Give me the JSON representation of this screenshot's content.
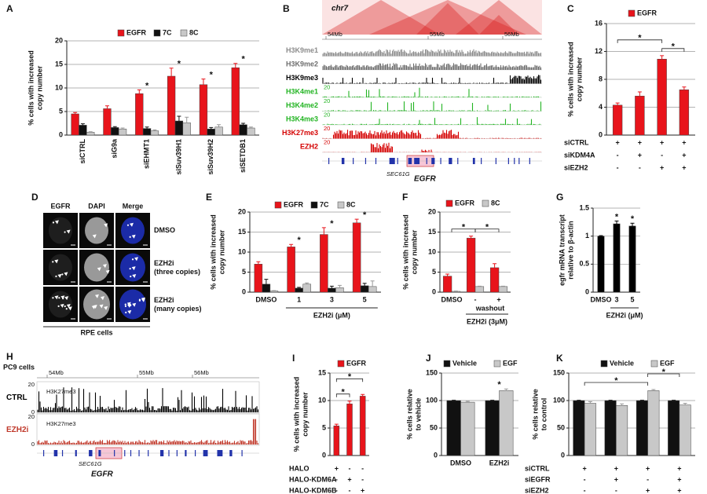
{
  "chart_data": [
    {
      "type": "bar",
      "panel": "A",
      "ylabel": [
        "% cells with increased",
        "copy number"
      ],
      "categories": [
        "siCTRL",
        "siG9a",
        "siEHMT1",
        "siSuv39H1",
        "siSuv39H2",
        "siSETDB1"
      ],
      "series": [
        {
          "name": "EGFR",
          "color": "#e8141b",
          "values": [
            4.5,
            5.6,
            8.8,
            12.5,
            10.7,
            14.3
          ],
          "errors": [
            0.3,
            0.6,
            0.8,
            1.7,
            1.2,
            0.9
          ]
        },
        {
          "name": "7C",
          "color": "#111111",
          "values": [
            2.1,
            1.6,
            1.4,
            3.0,
            1.3,
            2.2
          ],
          "errors": [
            0.3,
            0.2,
            0.3,
            1.0,
            0.3,
            0.3
          ]
        },
        {
          "name": "8C",
          "color": "#c8c8c8",
          "values": [
            0.6,
            1.3,
            0.9,
            2.6,
            1.7,
            1.5
          ],
          "errors": [
            0.1,
            0.2,
            0.2,
            1.2,
            0.5,
            0.2
          ]
        }
      ],
      "ylim": [
        0,
        20
      ],
      "yticks": [
        0,
        5,
        10,
        15,
        20
      ],
      "grid": true,
      "annotations": [
        "*",
        "*",
        "*",
        "*"
      ]
    },
    {
      "type": "bar",
      "panel": "C",
      "ylabel": [
        "% cells with increased",
        "copy number"
      ],
      "categories": [
        null,
        null,
        null,
        null
      ],
      "series": [
        {
          "name": "EGFR",
          "color": "#e8141b",
          "values": [
            4.3,
            5.6,
            10.9,
            6.5
          ],
          "errors": [
            0.3,
            0.6,
            0.5,
            0.4
          ]
        }
      ],
      "conditions": [
        {
          "name": "siCTRL",
          "marks": [
            "+",
            "+",
            "+",
            "+"
          ]
        },
        {
          "name": "siKDM4A",
          "marks": [
            "-",
            "+",
            "-",
            "+"
          ]
        },
        {
          "name": "siEZH2",
          "marks": [
            "-",
            "-",
            "+",
            "+"
          ]
        }
      ],
      "ylim": [
        0,
        16
      ],
      "yticks": [
        0,
        4,
        8,
        12,
        16
      ],
      "grid": true,
      "annotations": [
        "*",
        "*"
      ]
    },
    {
      "type": "bar",
      "panel": "E",
      "ylabel": [
        "% cells with increased",
        "copy number"
      ],
      "categories": [
        "DMSO",
        "1",
        "3",
        "5"
      ],
      "xlabel": "EZH2i (μM)",
      "series": [
        {
          "name": "EGFR",
          "color": "#e8141b",
          "values": [
            7.0,
            11.3,
            14.4,
            17.3
          ],
          "errors": [
            0.6,
            0.6,
            1.7,
            0.9
          ]
        },
        {
          "name": "7C",
          "color": "#111111",
          "values": [
            2.0,
            1.0,
            1.0,
            1.6
          ],
          "errors": [
            1.2,
            0.2,
            0.5,
            0.6
          ]
        },
        {
          "name": "8C",
          "color": "#c8c8c8",
          "values": [
            0.3,
            2.0,
            1.1,
            1.4
          ],
          "errors": [
            0.1,
            0.3,
            0.6,
            1.4
          ]
        }
      ],
      "ylim": [
        0,
        20
      ],
      "yticks": [
        0,
        5,
        10,
        15,
        20
      ],
      "grid": true,
      "annotations": [
        "*",
        "*",
        "*"
      ]
    },
    {
      "type": "bar",
      "panel": "F",
      "ylabel": [
        "% cells with increased",
        "copy number"
      ],
      "categories": [
        "DMSO",
        "-",
        "+"
      ],
      "sublabel": "washout",
      "xlabel": "EZH2i (3μM)",
      "series": [
        {
          "name": "EGFR",
          "color": "#e8141b",
          "values": [
            4.0,
            13.5,
            6.1
          ],
          "errors": [
            0.5,
            0.5,
            1.0
          ]
        },
        {
          "name": "8C",
          "color": "#c8c8c8",
          "values": [
            0.2,
            1.4,
            1.4
          ],
          "errors": [
            0.1,
            0.1,
            0.1
          ]
        }
      ],
      "ylim": [
        0,
        20
      ],
      "yticks": [
        0,
        5,
        10,
        15,
        20
      ],
      "grid": true,
      "annotations": [
        "*",
        "*"
      ]
    },
    {
      "type": "bar",
      "panel": "G",
      "ylabel": [
        "egfr mRNA transcript",
        "relative to β-actin"
      ],
      "categories": [
        "DMSO",
        "3",
        "5"
      ],
      "xlabel": "EZH2i (μM)",
      "series": [
        {
          "color": "#000000",
          "values": [
            1,
            1.22,
            1.18
          ],
          "errors": [
            0.01,
            0.05,
            0.05
          ]
        }
      ],
      "ylim": [
        0,
        1.5
      ],
      "yticks": [
        0,
        0.5,
        1,
        1.5
      ],
      "grid": true,
      "annotations": [
        "*",
        "*"
      ]
    },
    {
      "type": "bar",
      "panel": "I",
      "ylabel": [
        "% cells with increased",
        "copy number"
      ],
      "categories": [
        null,
        null,
        null
      ],
      "series": [
        {
          "name": "EGFR",
          "color": "#e8141b",
          "values": [
            5.4,
            9.4,
            10.8
          ],
          "errors": [
            0.3,
            0.5,
            0.3
          ]
        }
      ],
      "conditions": [
        {
          "name": "HALO",
          "marks": [
            "+",
            "-",
            "-"
          ]
        },
        {
          "name": "HALO-KDM6A",
          "marks": [
            "-",
            "+",
            "-"
          ]
        },
        {
          "name": "HALO-KDM6B",
          "marks": [
            "-",
            "-",
            "+"
          ]
        }
      ],
      "ylim": [
        0,
        15
      ],
      "yticks": [
        0,
        5,
        10,
        15
      ],
      "grid": true,
      "annotations": [
        "*",
        "*"
      ]
    },
    {
      "type": "bar",
      "panel": "J",
      "ylabel": [
        "% cells relative",
        "to vehicle"
      ],
      "categories": [
        "DMSO",
        "EZH2i"
      ],
      "series": [
        {
          "name": "Vehicle",
          "color": "#111111",
          "values": [
            100,
            100
          ],
          "errors": [
            0.5,
            0.5
          ]
        },
        {
          "name": "EGF",
          "color": "#c8c8c8",
          "values": [
            97,
            118
          ],
          "errors": [
            1.5,
            3
          ]
        }
      ],
      "ylim": [
        0,
        150
      ],
      "yticks": [
        0,
        50,
        100,
        150
      ],
      "grid": true,
      "annotations": [
        "*"
      ]
    },
    {
      "type": "bar",
      "panel": "K",
      "ylabel": [
        "% cells relative",
        "to control"
      ],
      "categories": [
        null,
        null,
        null,
        null
      ],
      "series": [
        {
          "name": "Vehicle",
          "color": "#111111",
          "values": [
            100,
            100,
            100,
            100
          ],
          "errors": [
            0.5,
            0.5,
            0.5,
            0.5
          ]
        },
        {
          "name": "EGF",
          "color": "#c8c8c8",
          "values": [
            95,
            91,
            118,
            92
          ],
          "errors": [
            3,
            3,
            2,
            3
          ]
        }
      ],
      "conditions": [
        {
          "name": "siCTRL",
          "marks": [
            "+",
            "+",
            "+",
            "+"
          ]
        },
        {
          "name": "siEGFR",
          "marks": [
            "-",
            "+",
            "-",
            "+"
          ]
        },
        {
          "name": "siEZH2",
          "marks": [
            "-",
            "-",
            "+",
            "+"
          ]
        }
      ],
      "ylim": [
        0,
        150
      ],
      "yticks": [
        0,
        50,
        100,
        150
      ],
      "grid": true,
      "annotations": [
        "*",
        "*"
      ]
    }
  ],
  "genome_browser": [
    {
      "panel": "B",
      "chromosome": "chr7",
      "positions": [
        "54Mb",
        "55Mb",
        "56Mb"
      ],
      "tracks": [
        {
          "name": "H3K9me1",
          "color": "#8c8c8c"
        },
        {
          "name": "H3K9me2",
          "color": "#6e6e6e"
        },
        {
          "name": "H3K9me3",
          "color": "#000000"
        },
        {
          "name": "H3K4me1",
          "color": "#22b422",
          "scale": "20"
        },
        {
          "name": "H3K4me2",
          "color": "#22b422",
          "scale": "20"
        },
        {
          "name": "H3K4me3",
          "color": "#22b422",
          "scale": "20"
        },
        {
          "name": "H3K27me3",
          "color": "#d40000",
          "scale": "20"
        },
        {
          "name": "EZH2",
          "color": "#d40000",
          "scale": "20"
        }
      ],
      "genes": [
        "SEC61G",
        "EGFR"
      ]
    },
    {
      "panel": "H",
      "cell_line": "PC9 cells",
      "positions": [
        "54Mb",
        "55Mb",
        "56Mb"
      ],
      "tracks": [
        {
          "name": "CTRL",
          "color": "#000000",
          "mark": "H3K27me3",
          "scale": [
            "20",
            "0"
          ]
        },
        {
          "name": "EZH2i",
          "color": "#c0392b",
          "mark": "H3K27me3",
          "scale": [
            "20",
            "0"
          ]
        }
      ],
      "genes": [
        "SEC61G",
        "EGFR"
      ]
    }
  ],
  "microscopy": {
    "panel": "D",
    "columns": [
      "EGFR",
      "DAPI",
      "Merge"
    ],
    "rows": [
      [
        "DMSO"
      ],
      [
        "EZH2i",
        "(three copies)"
      ],
      [
        "EZH2i",
        "(many copies)"
      ]
    ],
    "cell_line": "RPE cells"
  }
}
